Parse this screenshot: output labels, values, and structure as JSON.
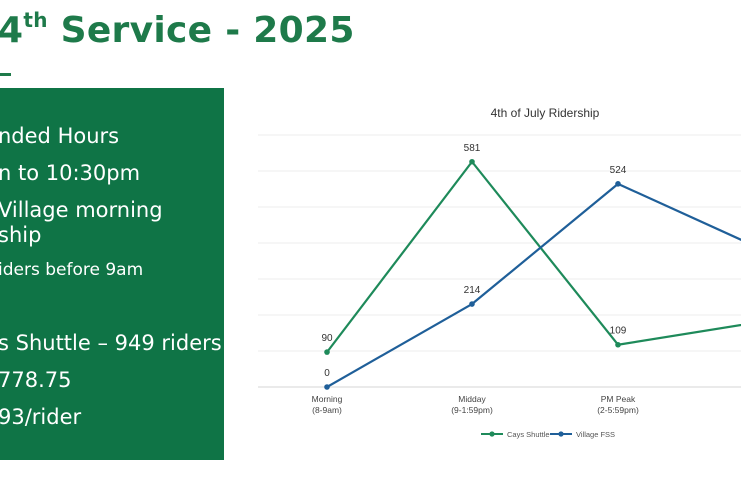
{
  "slide": {
    "title_prefix": "4",
    "title_sup": "th",
    "title_rest": " Service - 2025"
  },
  "panel": {
    "colors": {
      "background": "#0f7446",
      "text": "#ffffff"
    },
    "bullets": [
      "nded Hours",
      "n to 10:30pm",
      "Village morning",
      "ship",
      "iders before 9am",
      "s Shuttle – 949 riders",
      "778.75",
      "93/rider"
    ]
  },
  "chart_data": {
    "type": "line",
    "title": "4th of July Ridership",
    "categories": [
      "Morning",
      "Midday",
      "PM Peak",
      ""
    ],
    "category_sublabels": [
      "(8-9am)",
      "(9-1:59pm)",
      "(2-5:59pm)",
      ""
    ],
    "series": [
      {
        "name": "Cays Shuttle",
        "color": "#1e8a5a",
        "values": [
          90,
          581,
          109,
          169
        ]
      },
      {
        "name": "Village FSS",
        "color": "#1f5f99",
        "values": [
          0,
          214,
          524,
          354
        ]
      }
    ],
    "data_labels": [
      {
        "series": 0,
        "index": 0,
        "text": "90"
      },
      {
        "series": 0,
        "index": 1,
        "text": "581"
      },
      {
        "series": 0,
        "index": 2,
        "text": "109"
      },
      {
        "series": 1,
        "index": 0,
        "text": "0"
      },
      {
        "series": 1,
        "index": 1,
        "text": "214"
      },
      {
        "series": 1,
        "index": 2,
        "text": "524"
      }
    ],
    "ylim": [
      0,
      650
    ],
    "grid": true,
    "legend": "bottom"
  }
}
